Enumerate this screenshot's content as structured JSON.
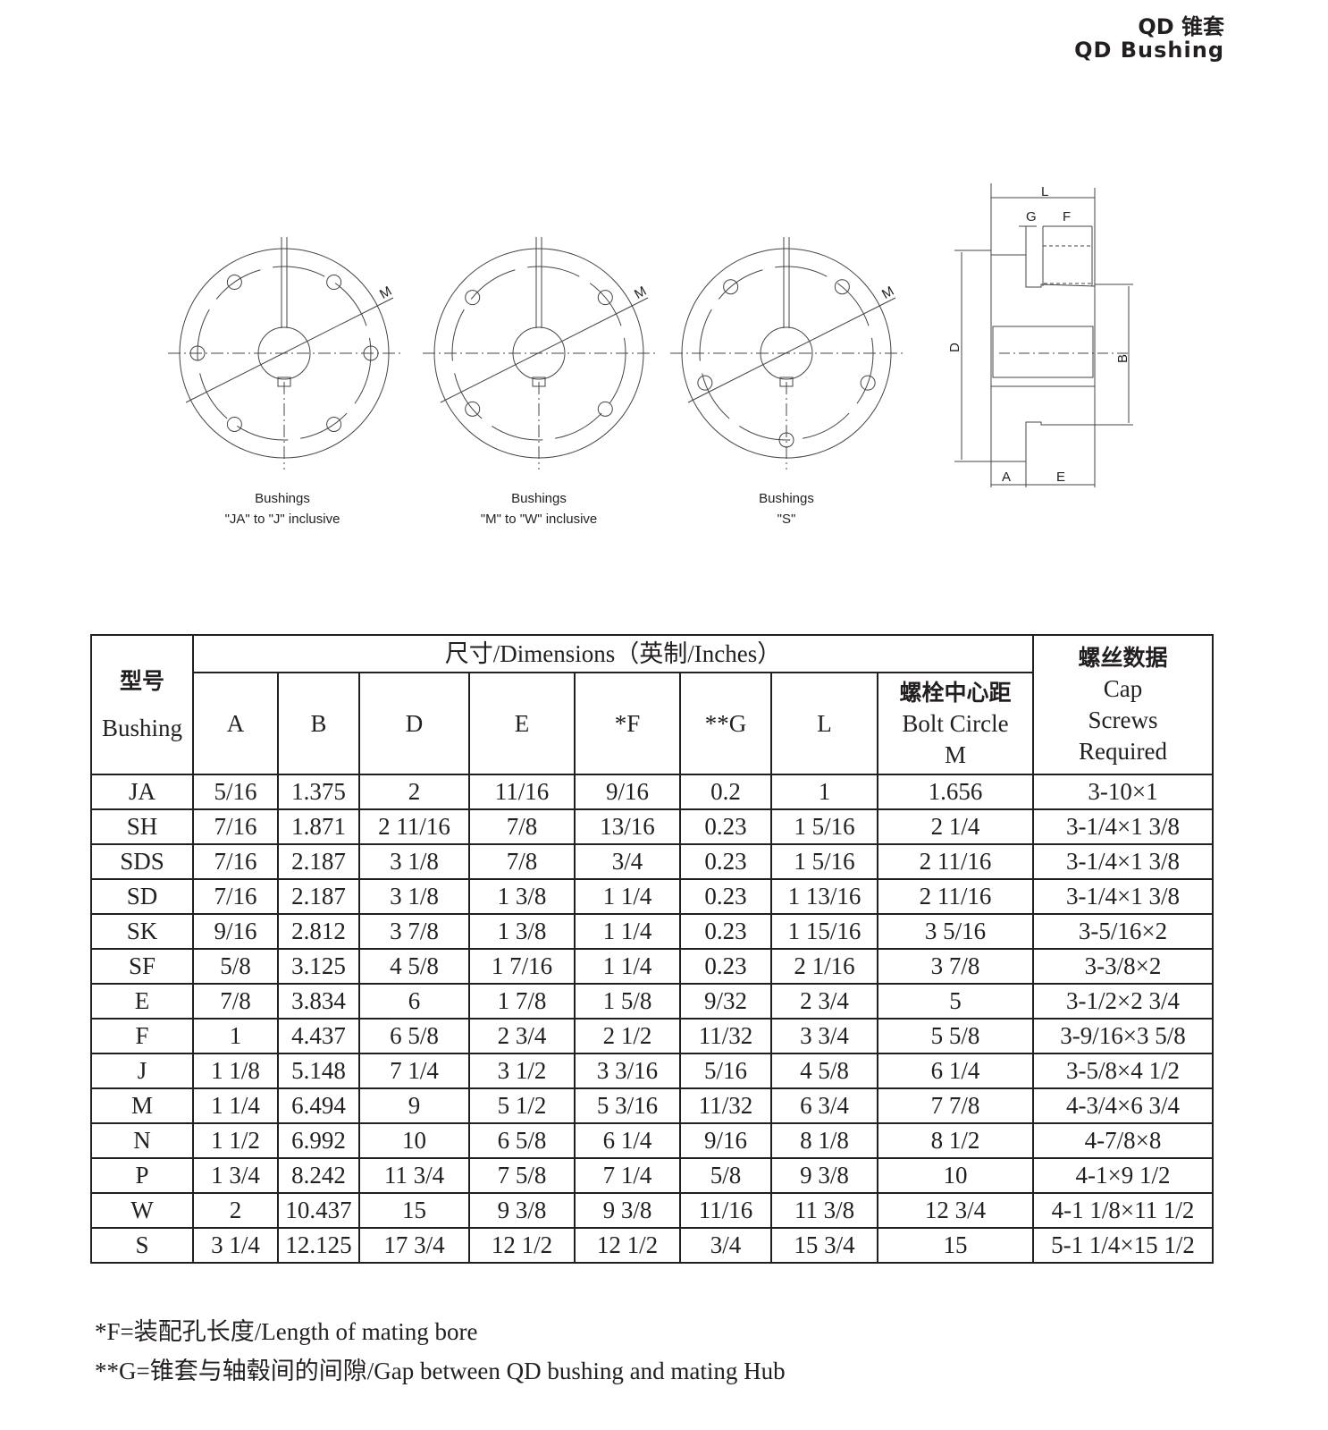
{
  "header": {
    "title_cn": "QD 锥套",
    "title_en": "QD Bushing"
  },
  "drawings": {
    "captions": [
      {
        "line1": "Bushings",
        "line2": "\"JA\" to \"J\" inclusive"
      },
      {
        "line1": "Bushings",
        "line2": "\"M\" to \"W\" inclusive"
      },
      {
        "line1": "Bushings",
        "line2": "\"S\""
      }
    ],
    "labels": {
      "M": "M",
      "L": "L",
      "G": "G",
      "F": "F",
      "D": "D",
      "B": "B",
      "A": "A",
      "E": "E"
    }
  },
  "table": {
    "model_cn": "型号",
    "model_en": "Bushing",
    "dimensions_title": "尺寸/Dimensions（英制/Inches）",
    "columns": [
      "A",
      "B",
      "D",
      "E",
      "*F",
      "**G",
      "L"
    ],
    "bolt_cn": "螺栓中心距",
    "bolt_en": "Bolt Circle",
    "bolt_m": "M",
    "screw_cn": "螺丝数据",
    "screw_en1": "Cap",
    "screw_en2": "Screws",
    "screw_en3": "Required",
    "rows": [
      [
        "JA",
        "5/16",
        "1.375",
        "2",
        "11/16",
        "9/16",
        "0.2",
        "1",
        "1.656",
        "3-10×1"
      ],
      [
        "SH",
        "7/16",
        "1.871",
        "2 11/16",
        "7/8",
        "13/16",
        "0.23",
        "1 5/16",
        "2 1/4",
        "3-1/4×1 3/8"
      ],
      [
        "SDS",
        "7/16",
        "2.187",
        "3 1/8",
        "7/8",
        "3/4",
        "0.23",
        "1 5/16",
        "2 11/16",
        "3-1/4×1 3/8"
      ],
      [
        "SD",
        "7/16",
        "2.187",
        "3 1/8",
        "1 3/8",
        "1 1/4",
        "0.23",
        "1 13/16",
        "2 11/16",
        "3-1/4×1 3/8"
      ],
      [
        "SK",
        "9/16",
        "2.812",
        "3 7/8",
        "1 3/8",
        "1 1/4",
        "0.23",
        "1 15/16",
        "3 5/16",
        "3-5/16×2"
      ],
      [
        "SF",
        "5/8",
        "3.125",
        "4 5/8",
        "1 7/16",
        "1 1/4",
        "0.23",
        "2 1/16",
        "3 7/8",
        "3-3/8×2"
      ],
      [
        "E",
        "7/8",
        "3.834",
        "6",
        "1 7/8",
        "1 5/8",
        "9/32",
        "2 3/4",
        "5",
        "3-1/2×2 3/4"
      ],
      [
        "F",
        "1",
        "4.437",
        "6 5/8",
        "2 3/4",
        "2 1/2",
        "11/32",
        "3 3/4",
        "5 5/8",
        "3-9/16×3 5/8"
      ],
      [
        "J",
        "1 1/8",
        "5.148",
        "7 1/4",
        "3 1/2",
        "3 3/16",
        "5/16",
        "4 5/8",
        "6 1/4",
        "3-5/8×4 1/2"
      ],
      [
        "M",
        "1 1/4",
        "6.494",
        "9",
        "5 1/2",
        "5 3/16",
        "11/32",
        "6 3/4",
        "7 7/8",
        "4-3/4×6 3/4"
      ],
      [
        "N",
        "1 1/2",
        "6.992",
        "10",
        "6 5/8",
        "6 1/4",
        "9/16",
        "8 1/8",
        "8 1/2",
        "4-7/8×8"
      ],
      [
        "P",
        "1 3/4",
        "8.242",
        "11 3/4",
        "7 5/8",
        "7 1/4",
        "5/8",
        "9 3/8",
        "10",
        "4-1×9 1/2"
      ],
      [
        "W",
        "2",
        "10.437",
        "15",
        "9 3/8",
        "9 3/8",
        "11/16",
        "11 3/8",
        "12 3/4",
        "4-1 1/8×11 1/2"
      ],
      [
        "S",
        "3 1/4",
        "12.125",
        "17 3/4",
        "12 1/2",
        "12 1/2",
        "3/4",
        "15 3/4",
        "15",
        "5-1 1/4×15 1/2"
      ]
    ]
  },
  "notes": {
    "f": "*F=装配孔长度/Length of mating bore",
    "g": "**G=锥套与轴毂间的间隙/Gap between QD bushing and mating Hub"
  }
}
